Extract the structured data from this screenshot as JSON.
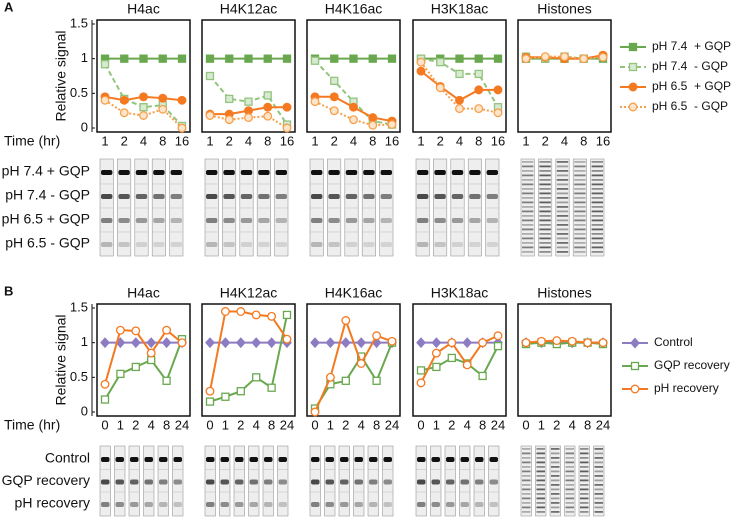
{
  "panels": [
    {
      "label": "A",
      "y_label": "Relative signal",
      "x_label": "Time (hr)",
      "ylim": [
        0,
        1.5
      ],
      "yticks": [
        0,
        0.5,
        1,
        1.5
      ],
      "categories": [
        "1",
        "2",
        "4",
        "8",
        "16"
      ],
      "legend": [
        {
          "name": "pH 7.4  + GQP",
          "color": "#6aa84f",
          "fill": "#6aa84f",
          "dash": "solid",
          "marker": "square"
        },
        {
          "name": "pH 7.4  - GQP",
          "color": "#93c47d",
          "fill": "#d9ead3",
          "dash": "dashed",
          "marker": "square"
        },
        {
          "name": "pH 6.5  + GQP",
          "color": "#f47920",
          "fill": "#f47920",
          "dash": "solid",
          "marker": "circle"
        },
        {
          "name": "pH 6.5  - GQP",
          "color": "#f6a04d",
          "fill": "#fde5cc",
          "dash": "dotted",
          "marker": "circle"
        }
      ],
      "charts": [
        {
          "type": "line",
          "title": "H4ac",
          "series": [
            {
              "values": [
                1,
                1,
                1,
                1,
                1
              ]
            },
            {
              "values": [
                0.92,
                0.42,
                0.3,
                0.33,
                0.03
              ]
            },
            {
              "values": [
                0.45,
                0.4,
                0.45,
                0.43,
                0.4
              ]
            },
            {
              "values": [
                0.4,
                0.22,
                0.18,
                0.27,
                0
              ]
            }
          ]
        },
        {
          "type": "line",
          "title": "H4K12ac",
          "series": [
            {
              "values": [
                1,
                1,
                1,
                1,
                1
              ]
            },
            {
              "values": [
                0.75,
                0.42,
                0.38,
                0.47,
                0.05
              ]
            },
            {
              "values": [
                0.2,
                0.2,
                0.25,
                0.3,
                0.3
              ]
            },
            {
              "values": [
                0.18,
                0.12,
                0.15,
                0.17,
                0
              ]
            }
          ]
        },
        {
          "type": "line",
          "title": "H4K16ac",
          "series": [
            {
              "values": [
                1,
                1,
                1,
                1,
                1
              ]
            },
            {
              "values": [
                0.97,
                0.68,
                0.38,
                0.1,
                0.05
              ]
            },
            {
              "values": [
                0.45,
                0.45,
                0.3,
                0.15,
                0.1
              ]
            },
            {
              "values": [
                0.38,
                0.25,
                0.12,
                0.04,
                0.05
              ]
            }
          ]
        },
        {
          "type": "line",
          "title": "H3K18ac",
          "series": [
            {
              "values": [
                1,
                1,
                1,
                1,
                1
              ]
            },
            {
              "values": [
                1,
                0.95,
                0.78,
                0.78,
                0.3
              ]
            },
            {
              "values": [
                0.82,
                0.6,
                0.4,
                0.55,
                0.55
              ]
            },
            {
              "values": [
                0.95,
                0.58,
                0.28,
                0.28,
                0.22
              ]
            }
          ]
        },
        {
          "type": "line",
          "title": "Histones",
          "series": [
            {
              "values": [
                1,
                1,
                1,
                1,
                1
              ]
            },
            {
              "values": [
                1.03,
                1,
                1.03,
                1,
                1.03
              ]
            },
            {
              "values": [
                1.02,
                1.02,
                1,
                1,
                1.05
              ]
            },
            {
              "values": [
                1,
                1.03,
                1.03,
                1,
                1.02
              ]
            }
          ]
        }
      ],
      "blot_labels": [
        "pH 7.4 + GQP",
        "pH 7.4 - GQP",
        "pH 6.5 + GQP",
        "pH 6.5 - GQP"
      ]
    },
    {
      "label": "B",
      "y_label": "Relative signal",
      "x_label": "Time (hr)",
      "ylim": [
        0,
        1.5
      ],
      "yticks": [
        0,
        0.5,
        1,
        1.5
      ],
      "categories": [
        "0",
        "1",
        "2",
        "4",
        "8",
        "24"
      ],
      "legend": [
        {
          "name": "Control",
          "color": "#8e7cc3",
          "fill": "#8e7cc3",
          "dash": "solid",
          "marker": "diamond"
        },
        {
          "name": "GQP recovery",
          "color": "#6aa84f",
          "fill": "#ffffff",
          "dash": "solid",
          "marker": "square"
        },
        {
          "name": "pH recovery",
          "color": "#f47920",
          "fill": "#ffffff",
          "dash": "solid",
          "marker": "circle"
        }
      ],
      "charts": [
        {
          "type": "line",
          "title": "H4ac",
          "series": [
            {
              "values": [
                1,
                1,
                1,
                1,
                1,
                1
              ]
            },
            {
              "values": [
                0.18,
                0.55,
                0.65,
                0.75,
                0.45,
                1.05
              ]
            },
            {
              "values": [
                0.4,
                1.18,
                1.17,
                0.85,
                1.18,
                1
              ]
            }
          ]
        },
        {
          "type": "line",
          "title": "H4K12ac",
          "series": [
            {
              "values": [
                1,
                1,
                1,
                1,
                1,
                1
              ]
            },
            {
              "values": [
                0.15,
                0.22,
                0.3,
                0.5,
                0.35,
                1.4
              ]
            },
            {
              "values": [
                0.3,
                1.45,
                1.45,
                1.4,
                1.38,
                1.05
              ]
            }
          ]
        },
        {
          "type": "line",
          "title": "H4K16ac",
          "series": [
            {
              "values": [
                1,
                1,
                1,
                1,
                1,
                1
              ]
            },
            {
              "values": [
                0.05,
                0.4,
                0.45,
                0.8,
                0.45,
                1
              ]
            },
            {
              "values": [
                0,
                0.5,
                1.32,
                0.7,
                1.1,
                1.02
              ]
            }
          ]
        },
        {
          "type": "line",
          "title": "H3K18ac",
          "series": [
            {
              "values": [
                1,
                1,
                1,
                1,
                1,
                1
              ]
            },
            {
              "values": [
                0.6,
                0.65,
                0.78,
                0.7,
                0.52,
                0.95
              ]
            },
            {
              "values": [
                0.42,
                0.85,
                1,
                0.68,
                1,
                1.1
              ]
            }
          ]
        },
        {
          "type": "line",
          "title": "Histones",
          "series": [
            {
              "values": [
                1,
                1,
                1,
                1,
                1,
                1
              ]
            },
            {
              "values": [
                0.98,
                1,
                0.98,
                1,
                1,
                0.98
              ]
            },
            {
              "values": [
                1,
                1.02,
                1.03,
                1.02,
                1,
                1
              ]
            }
          ]
        }
      ],
      "blot_labels": [
        "Control",
        "GQP recovery",
        "pH recovery"
      ]
    }
  ]
}
